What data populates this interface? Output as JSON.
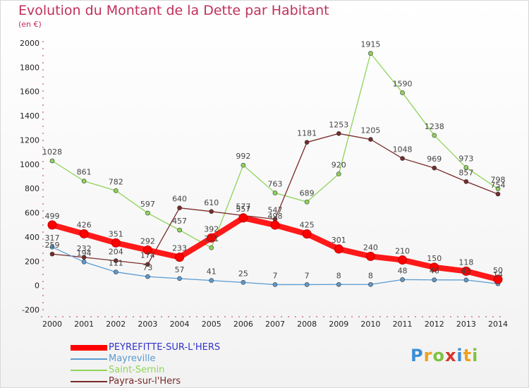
{
  "header": {
    "title": "Evolution du Montant de la Dette par Habitant",
    "unit": "(en €)"
  },
  "logo": {
    "text": "Proxiti",
    "colors": [
      "#3a8fd6",
      "#f0a020",
      "#7fc241",
      "#d9342b"
    ]
  },
  "chart_data": {
    "type": "line",
    "title": "Evolution du Montant de la Dette par Habitant",
    "ylabel": "(en €)",
    "xlabel": "",
    "x": [
      2000,
      2001,
      2002,
      2003,
      2004,
      2005,
      2006,
      2007,
      2008,
      2009,
      2010,
      2011,
      2012,
      2013,
      2014
    ],
    "ylim": [
      -200,
      2000
    ],
    "yticks": [
      -200,
      0,
      200,
      400,
      600,
      800,
      1000,
      1200,
      1400,
      1600,
      1800,
      2000
    ],
    "grid": false,
    "legend_position": "bottom-left",
    "series": [
      {
        "name": "Saint-Sernin",
        "color": "#8fd45a",
        "width": 1.3,
        "values": [
          1028,
          861,
          782,
          597,
          457,
          311,
          992,
          763,
          689,
          920,
          1915,
          1590,
          1238,
          973,
          798
        ]
      },
      {
        "name": "Payra-sur-l'Hers",
        "color": "#7a2a2a",
        "width": 1.3,
        "values": [
          259,
          232,
          204,
          174,
          640,
          610,
          577,
          547,
          1181,
          1253,
          1205,
          1048,
          969,
          857,
          754
        ]
      },
      {
        "name": "Mayreville",
        "color": "#5b9bd0",
        "width": 1.3,
        "values": [
          317,
          194,
          111,
          73,
          57,
          41,
          25,
          7,
          7,
          8,
          8,
          48,
          46,
          45,
          14
        ]
      },
      {
        "name": "PEYREFITTE-SUR-L'HERS",
        "color": "#ff0000",
        "width": 8,
        "values": [
          499,
          426,
          351,
          292,
          233,
          392,
          557,
          498,
          425,
          301,
          240,
          210,
          150,
          118,
          50
        ]
      }
    ]
  }
}
